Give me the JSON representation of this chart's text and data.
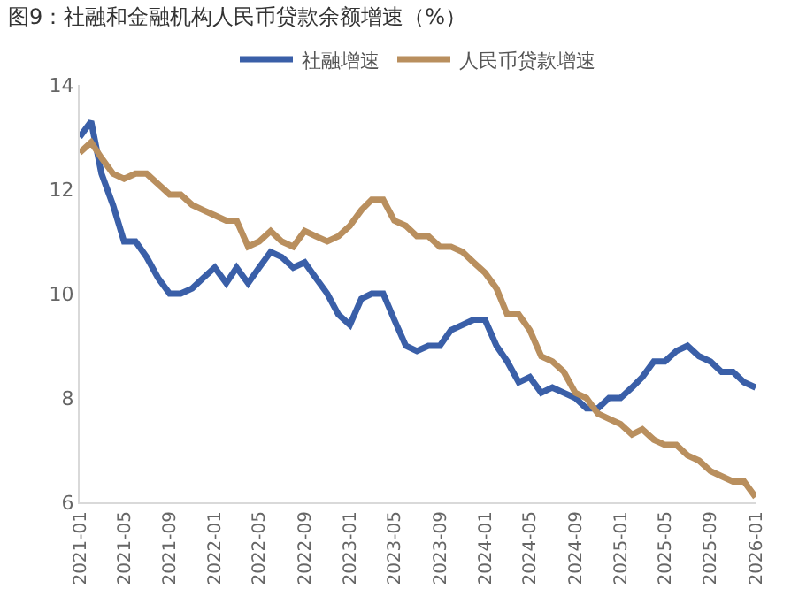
{
  "chart_data": {
    "type": "line",
    "title": "图9：社融和金融机构人民币贷款余额增速（%）",
    "x": [
      "2021-01",
      "2021-02",
      "2021-03",
      "2021-04",
      "2021-05",
      "2021-06",
      "2021-07",
      "2021-08",
      "2021-09",
      "2021-10",
      "2021-11",
      "2021-12",
      "2022-01",
      "2022-02",
      "2022-03",
      "2022-04",
      "2022-05",
      "2022-06",
      "2022-07",
      "2022-08",
      "2022-09",
      "2022-10",
      "2022-11",
      "2022-12",
      "2023-01",
      "2023-02",
      "2023-03",
      "2023-04",
      "2023-05",
      "2023-06",
      "2023-07",
      "2023-08",
      "2023-09",
      "2023-10",
      "2023-11",
      "2023-12",
      "2024-01",
      "2024-02",
      "2024-03",
      "2024-04",
      "2024-05",
      "2024-06",
      "2024-07",
      "2024-08",
      "2024-09",
      "2024-10",
      "2024-11",
      "2024-12",
      "2025-01",
      "2025-02",
      "2025-03",
      "2025-04",
      "2025-05",
      "2025-06",
      "2025-07",
      "2025-08",
      "2025-09",
      "2025-10",
      "2025-11",
      "2025-12",
      "2026-01"
    ],
    "series": [
      {
        "name": "社融增速",
        "color": "#3a5fa8",
        "values": [
          13.0,
          13.3,
          12.3,
          11.7,
          11.0,
          11.0,
          10.7,
          10.3,
          10.0,
          10.0,
          10.1,
          10.3,
          10.5,
          10.2,
          10.5,
          10.2,
          10.5,
          10.8,
          10.7,
          10.5,
          10.6,
          10.3,
          10.0,
          9.6,
          9.4,
          9.9,
          10.0,
          10.0,
          9.5,
          9.0,
          8.9,
          9.0,
          9.0,
          9.3,
          9.4,
          9.5,
          9.5,
          9.0,
          8.7,
          8.3,
          8.4,
          8.1,
          8.2,
          8.1,
          8.0,
          7.8,
          7.8,
          8.0,
          8.0,
          8.2,
          8.4,
          8.7,
          8.7,
          8.9,
          9.0,
          8.8,
          8.7,
          8.5,
          8.5,
          8.3,
          8.2
        ]
      },
      {
        "name": "人民币贷款增速",
        "color": "#b98f5e",
        "values": [
          12.7,
          12.9,
          12.6,
          12.3,
          12.2,
          12.3,
          12.3,
          12.1,
          11.9,
          11.9,
          11.7,
          11.6,
          11.5,
          11.4,
          11.4,
          10.9,
          11.0,
          11.2,
          11.0,
          10.9,
          11.2,
          11.1,
          11.0,
          11.1,
          11.3,
          11.6,
          11.8,
          11.8,
          11.4,
          11.3,
          11.1,
          11.1,
          10.9,
          10.9,
          10.8,
          10.6,
          10.4,
          10.1,
          9.6,
          9.6,
          9.3,
          8.8,
          8.7,
          8.5,
          8.1,
          8.0,
          7.7,
          7.6,
          7.5,
          7.3,
          7.4,
          7.2,
          7.1,
          7.1,
          6.9,
          6.8,
          6.6,
          6.5,
          6.4,
          6.4,
          6.1
        ]
      }
    ],
    "xlim": [
      "2021-01",
      "2026-01"
    ],
    "xticks": [
      "2021-01",
      "2021-05",
      "2021-09",
      "2022-01",
      "2022-05",
      "2022-09",
      "2023-01",
      "2023-05",
      "2023-09",
      "2024-01",
      "2024-05",
      "2024-09",
      "2025-01",
      "2025-05",
      "2025-09",
      "2026-01"
    ],
    "ylim": [
      6,
      14
    ],
    "yticks": [
      6,
      8,
      10,
      12,
      14
    ],
    "grid": false,
    "legend": "top",
    "marker": "none",
    "line_style": "solid"
  }
}
